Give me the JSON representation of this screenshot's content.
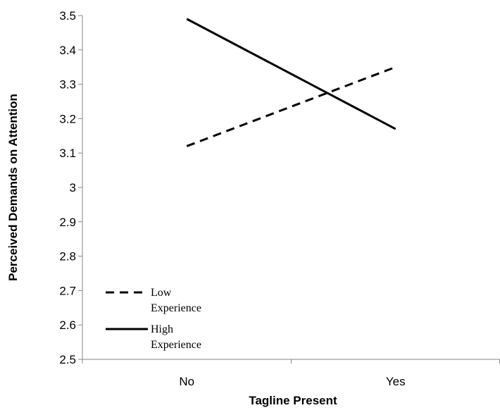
{
  "chart_data": {
    "type": "line",
    "title": "",
    "xlabel": "Tagline Present",
    "ylabel": "Perceived Demands on Attention",
    "categories": [
      "No",
      "Yes"
    ],
    "ylim": [
      2.5,
      3.5
    ],
    "yticks": [
      "2.5",
      "2.6",
      "2.7",
      "2.8",
      "2.9",
      "3",
      "3.1",
      "3.2",
      "3.3",
      "3.4",
      "3.5"
    ],
    "grid": false,
    "legend_position": "bottom-left",
    "series": [
      {
        "name": "Low Experience",
        "name_lines": [
          "Low",
          "Experience"
        ],
        "style": "dashed",
        "color": "#000000",
        "values": [
          3.12,
          3.35
        ]
      },
      {
        "name": "High Experience",
        "name_lines": [
          "High",
          "Experience"
        ],
        "style": "solid",
        "color": "#000000",
        "values": [
          3.49,
          3.17
        ]
      }
    ]
  }
}
